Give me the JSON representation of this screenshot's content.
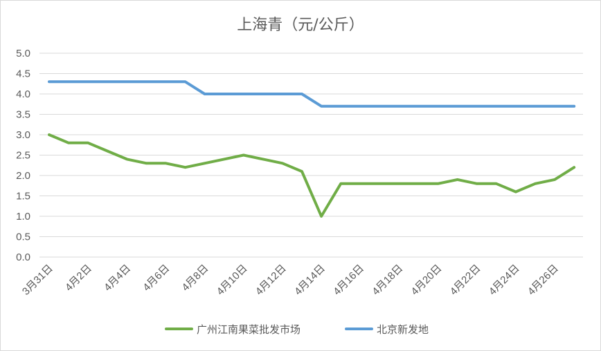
{
  "chart_data": {
    "type": "line",
    "title": "上海青（元/公斤）",
    "xlabel": "",
    "ylabel": "",
    "ylim": [
      0,
      5
    ],
    "yticks": [
      "0.0",
      "0.5",
      "1.0",
      "1.5",
      "2.0",
      "2.5",
      "3.0",
      "3.5",
      "4.0",
      "4.5",
      "5.0"
    ],
    "grid": true,
    "legend_position": "bottom",
    "x": [
      "3月31日",
      "4月1日",
      "4月2日",
      "4月3日",
      "4月4日",
      "4月5日",
      "4月6日",
      "4月7日",
      "4月8日",
      "4月9日",
      "4月10日",
      "4月11日",
      "4月12日",
      "4月13日",
      "4月14日",
      "4月15日",
      "4月16日",
      "4月17日",
      "4月18日",
      "4月19日",
      "4月20日",
      "4月21日",
      "4月22日",
      "4月23日",
      "4月24日",
      "4月25日",
      "4月26日",
      "4月27日"
    ],
    "xtick_labels": [
      "3月31日",
      "4月2日",
      "4月4日",
      "4月6日",
      "4月8日",
      "4月10日",
      "4月12日",
      "4月14日",
      "4月16日",
      "4月18日",
      "4月20日",
      "4月22日",
      "4月24日",
      "4月26日"
    ],
    "series": [
      {
        "name": "广州江南果菜批发市场",
        "color": "#70ad47",
        "values": [
          3.0,
          2.8,
          2.8,
          2.6,
          2.4,
          2.3,
          2.3,
          2.2,
          2.3,
          2.4,
          2.5,
          2.4,
          2.3,
          2.1,
          1.0,
          1.8,
          1.8,
          1.8,
          1.8,
          1.8,
          1.8,
          1.9,
          1.8,
          1.8,
          1.6,
          1.8,
          1.9,
          2.2
        ]
      },
      {
        "name": "北京新发地",
        "color": "#5b9bd5",
        "values": [
          4.3,
          4.3,
          4.3,
          4.3,
          4.3,
          4.3,
          4.3,
          4.3,
          4.0,
          4.0,
          4.0,
          4.0,
          4.0,
          4.0,
          3.7,
          3.7,
          3.7,
          3.7,
          3.7,
          3.7,
          3.7,
          3.7,
          3.7,
          3.7,
          3.7,
          3.7,
          3.7,
          3.7
        ]
      }
    ],
    "gridline_color": "#d9d9d9"
  }
}
